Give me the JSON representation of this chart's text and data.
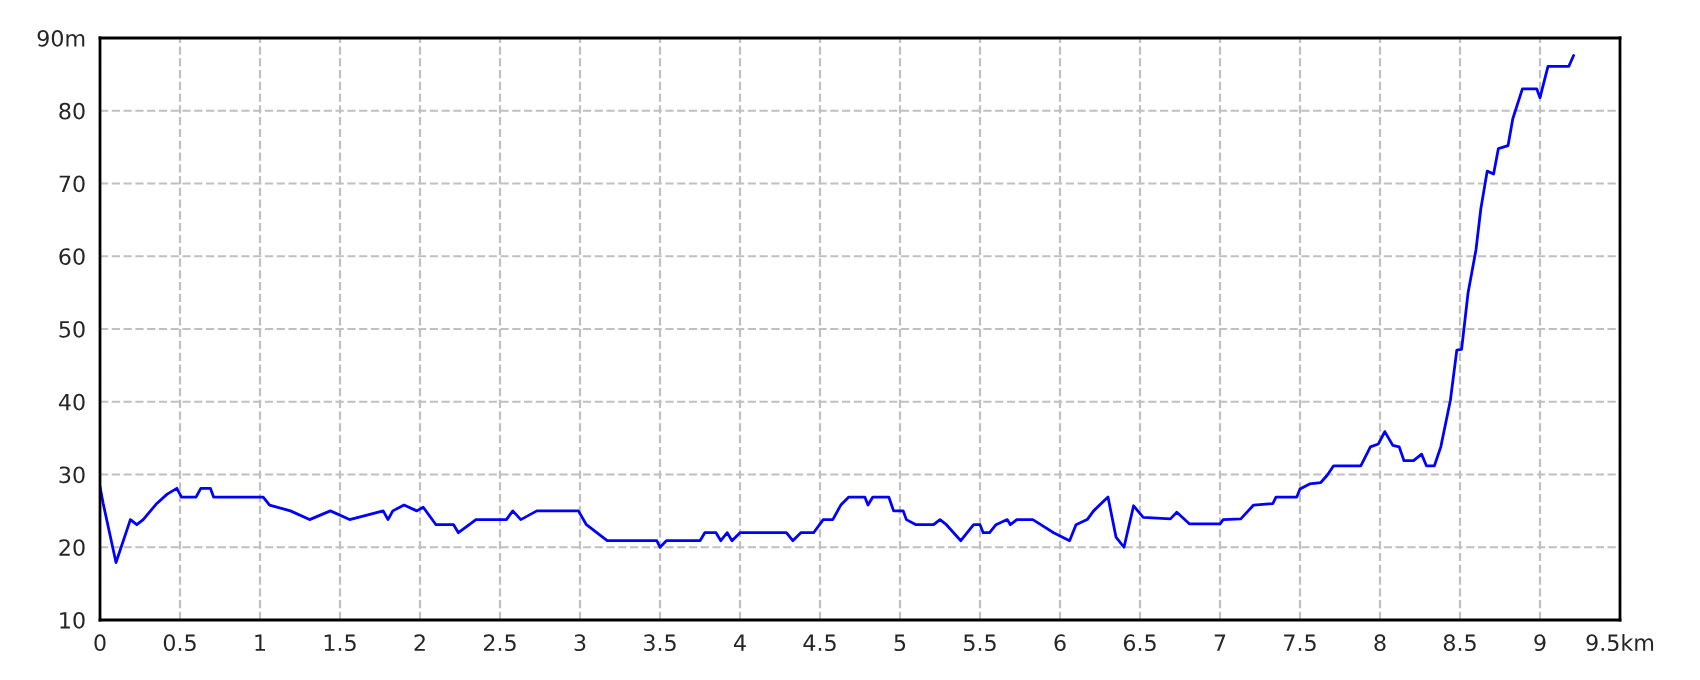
{
  "chart_data": {
    "type": "line",
    "x": [
      0,
      0.02,
      0.1,
      0.19,
      0.23,
      0.27,
      0.35,
      0.42,
      0.48,
      0.51,
      0.6,
      0.63,
      0.69,
      0.71,
      1.02,
      1.06,
      1.19,
      1.31,
      1.44,
      1.56,
      1.77,
      1.8,
      1.83,
      1.9,
      1.98,
      2.02,
      2.1,
      2.21,
      2.24,
      2.35,
      2.54,
      2.58,
      2.63,
      2.73,
      2.99,
      3.04,
      3.17,
      3.48,
      3.5,
      3.54,
      3.75,
      3.78,
      3.85,
      3.88,
      3.92,
      3.95,
      4.0,
      4.29,
      4.33,
      4.38,
      4.46,
      4.52,
      4.58,
      4.63,
      4.68,
      4.78,
      4.8,
      4.83,
      4.93,
      4.96,
      5.02,
      5.04,
      5.1,
      5.21,
      5.25,
      5.29,
      5.38,
      5.46,
      5.5,
      5.52,
      5.56,
      5.6,
      5.67,
      5.69,
      5.73,
      5.83,
      5.88,
      5.96,
      6.06,
      6.1,
      6.17,
      6.21,
      6.3,
      6.35,
      6.4,
      6.46,
      6.52,
      6.69,
      6.73,
      6.81,
      7.0,
      7.02,
      7.13,
      7.21,
      7.33,
      7.35,
      7.48,
      7.5,
      7.56,
      7.63,
      7.67,
      7.71,
      7.88,
      7.94,
      7.99,
      8.03,
      8.08,
      8.12,
      8.15,
      8.21,
      8.26,
      8.29,
      8.34,
      8.38,
      8.44,
      8.48,
      8.51,
      8.55,
      8.6,
      8.63,
      8.67,
      8.71,
      8.74,
      8.8,
      8.83,
      8.89,
      8.98,
      9.0,
      9.05,
      9.18,
      9.21
    ],
    "series": [
      {
        "color": "#0000ff",
        "values": [
          28.3,
          26,
          17.9,
          23.8,
          23.1,
          23.8,
          25.9,
          27.3,
          28.1,
          26.9,
          26.9,
          28.1,
          28.1,
          26.9,
          26.9,
          25.8,
          25,
          23.8,
          25,
          23.8,
          25,
          23.8,
          25,
          25.8,
          25,
          25.5,
          23.1,
          23.1,
          22,
          23.8,
          23.8,
          25,
          23.8,
          25,
          25,
          23.1,
          20.9,
          20.9,
          20,
          20.9,
          20.9,
          22,
          22,
          20.9,
          22,
          20.9,
          22,
          22,
          20.9,
          22,
          22,
          23.8,
          23.8,
          25.8,
          26.9,
          26.9,
          25.8,
          26.9,
          26.9,
          25,
          25,
          23.8,
          23.1,
          23.1,
          23.8,
          23.1,
          20.9,
          23.1,
          23.1,
          22,
          22,
          23.1,
          23.8,
          23.1,
          23.8,
          23.8,
          23.1,
          22,
          20.9,
          23.1,
          23.8,
          25,
          26.9,
          21.4,
          20,
          25.7,
          24.1,
          23.9,
          24.8,
          23.2,
          23.2,
          23.8,
          23.9,
          25.8,
          26,
          26.9,
          26.9,
          28,
          28.7,
          28.9,
          29.9,
          31.2,
          31.2,
          33.8,
          34.2,
          35.9,
          34,
          33.8,
          31.9,
          31.9,
          32.8,
          31.2,
          31.2,
          33.8,
          40.2,
          47.1,
          47.2,
          54.9,
          60.9,
          66.5,
          71.7,
          71.3,
          74.8,
          75.2,
          78.9,
          83,
          83,
          81.8,
          86.1,
          86.1,
          87.6
        ]
      }
    ],
    "xlim": [
      0,
      9.5
    ],
    "ylim": [
      10,
      90
    ],
    "xticks": [
      0,
      0.5,
      1,
      1.5,
      2,
      2.5,
      3,
      3.5,
      4,
      4.5,
      5,
      5.5,
      6,
      6.5,
      7,
      7.5,
      8,
      8.5,
      9,
      {
        "value": 9.5,
        "label": "9.5km"
      }
    ],
    "yticks": [
      10,
      20,
      30,
      40,
      50,
      60,
      70,
      80,
      {
        "value": 90,
        "label": "90m"
      }
    ],
    "grid": true,
    "marker": "none",
    "line_style": "solid",
    "legend": false
  }
}
